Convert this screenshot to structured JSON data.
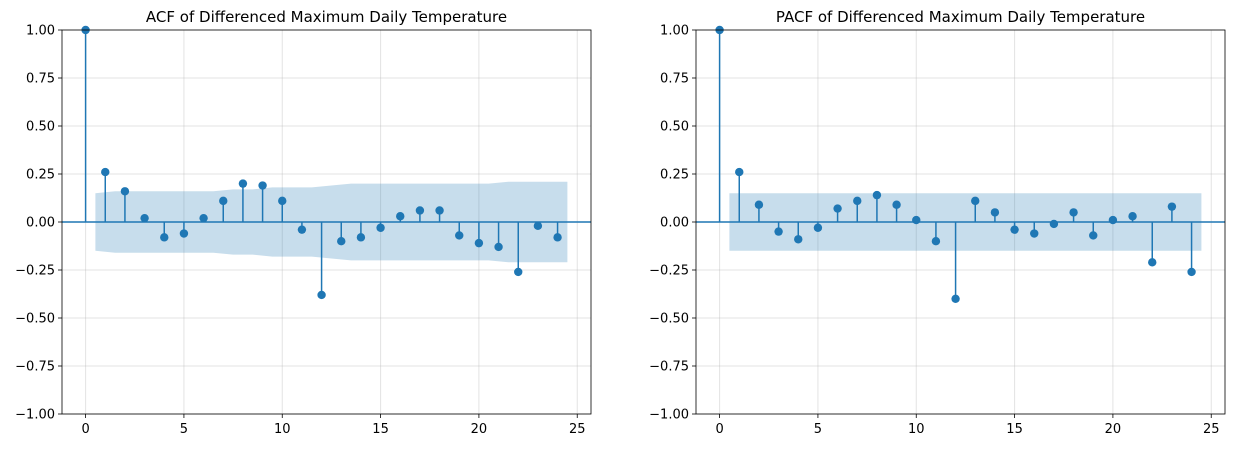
{
  "colors": {
    "stem": "#1f77b4",
    "band": "#1f77b4",
    "grid": "#b0b0b0"
  },
  "chart_data": [
    {
      "type": "stem",
      "title": "ACF of Differenced Maximum Daily Temperature",
      "xlabel": "",
      "ylabel": "",
      "xlim": [
        -1.2,
        25.7
      ],
      "ylim": [
        -1.0,
        1.0
      ],
      "xticks": [
        0,
        5,
        10,
        15,
        20,
        25
      ],
      "yticks": [
        -1.0,
        -0.75,
        -0.5,
        -0.25,
        0.0,
        0.25,
        0.5,
        0.75,
        1.0
      ],
      "xtick_labels": [
        "0",
        "5",
        "10",
        "15",
        "20",
        "25"
      ],
      "ytick_labels": [
        "−1.00",
        "−0.75",
        "−0.50",
        "−0.25",
        "0.00",
        "0.25",
        "0.50",
        "0.75",
        "1.00"
      ],
      "grid": true,
      "lags": [
        0,
        1,
        2,
        3,
        4,
        5,
        6,
        7,
        8,
        9,
        10,
        11,
        12,
        13,
        14,
        15,
        16,
        17,
        18,
        19,
        20,
        21,
        22,
        23,
        24
      ],
      "values": [
        1.0,
        0.26,
        0.16,
        0.02,
        -0.08,
        -0.06,
        0.02,
        0.11,
        0.2,
        0.19,
        0.11,
        -0.04,
        -0.38,
        -0.1,
        -0.08,
        -0.03,
        0.03,
        0.06,
        0.06,
        -0.07,
        -0.11,
        -0.13,
        -0.26,
        -0.02,
        -0.08
      ],
      "confidence_band": {
        "x": [
          0.5,
          1.5,
          2.5,
          3.5,
          4.5,
          5.5,
          6.5,
          7.5,
          8.5,
          9.5,
          10.5,
          11.5,
          12.5,
          13.5,
          14.5,
          15.5,
          16.5,
          17.5,
          18.5,
          19.5,
          20.5,
          21.5,
          22.5,
          23.5,
          24.5
        ],
        "upper": [
          0.15,
          0.16,
          0.16,
          0.16,
          0.16,
          0.16,
          0.16,
          0.17,
          0.17,
          0.18,
          0.18,
          0.18,
          0.19,
          0.2,
          0.2,
          0.2,
          0.2,
          0.2,
          0.2,
          0.2,
          0.2,
          0.21,
          0.21,
          0.21,
          0.21
        ]
      }
    },
    {
      "type": "stem",
      "title": "PACF of Differenced Maximum Daily Temperature",
      "xlabel": "",
      "ylabel": "",
      "xlim": [
        -1.2,
        25.7
      ],
      "ylim": [
        -1.0,
        1.0
      ],
      "xticks": [
        0,
        5,
        10,
        15,
        20,
        25
      ],
      "yticks": [
        -1.0,
        -0.75,
        -0.5,
        -0.25,
        0.0,
        0.25,
        0.5,
        0.75,
        1.0
      ],
      "xtick_labels": [
        "0",
        "5",
        "10",
        "15",
        "20",
        "25"
      ],
      "ytick_labels": [
        "−1.00",
        "−0.75",
        "−0.50",
        "−0.25",
        "0.00",
        "0.25",
        "0.50",
        "0.75",
        "1.00"
      ],
      "grid": true,
      "lags": [
        0,
        1,
        2,
        3,
        4,
        5,
        6,
        7,
        8,
        9,
        10,
        11,
        12,
        13,
        14,
        15,
        16,
        17,
        18,
        19,
        20,
        21,
        22,
        23,
        24
      ],
      "values": [
        1.0,
        0.26,
        0.09,
        -0.05,
        -0.09,
        -0.03,
        0.07,
        0.11,
        0.14,
        0.09,
        0.01,
        -0.1,
        -0.4,
        0.11,
        0.05,
        -0.04,
        -0.06,
        -0.01,
        0.05,
        -0.07,
        0.01,
        0.03,
        -0.21,
        0.08,
        -0.26
      ],
      "confidence_band": {
        "x": [
          0.5,
          24.5
        ],
        "upper": [
          0.15,
          0.15
        ]
      }
    }
  ]
}
